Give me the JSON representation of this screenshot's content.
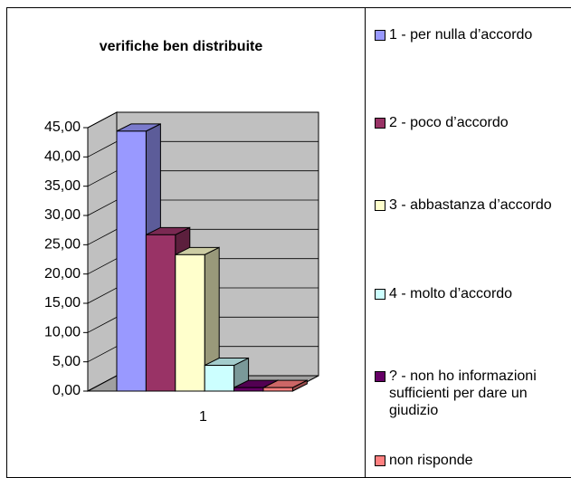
{
  "chart_data": {
    "type": "bar3d",
    "title": "verifiche ben distribuite",
    "categories": [
      "1"
    ],
    "series": [
      {
        "name": "1 - per nulla d’accordo",
        "color": "#9999ff",
        "values": [
          44.4
        ]
      },
      {
        "name": "2 - poco d’accordo",
        "color": "#993366",
        "values": [
          26.7
        ]
      },
      {
        "name": "3 - abbastanza d’accordo",
        "color": "#ffffcc",
        "values": [
          23.3
        ]
      },
      {
        "name": "4 - molto d’accordo",
        "color": "#ccffff",
        "values": [
          4.4
        ]
      },
      {
        "name": "? - non ho informazioni sufficienti per dare un giudizio",
        "color": "#660066",
        "values": [
          0.6
        ]
      },
      {
        "name": "non risponde",
        "color": "#ff8080",
        "values": [
          0.6
        ]
      }
    ],
    "ylim": [
      0,
      45
    ],
    "yticks": [
      {
        "value": 0,
        "label": "0,00"
      },
      {
        "value": 5,
        "label": "5,00"
      },
      {
        "value": 10,
        "label": "10,00"
      },
      {
        "value": 15,
        "label": "15,00"
      },
      {
        "value": 20,
        "label": "20,00"
      },
      {
        "value": 25,
        "label": "25,00"
      },
      {
        "value": 30,
        "label": "30,00"
      },
      {
        "value": 35,
        "label": "35,00"
      },
      {
        "value": 40,
        "label": "40,00"
      },
      {
        "value": 45,
        "label": "45,00"
      }
    ],
    "grid": true
  }
}
